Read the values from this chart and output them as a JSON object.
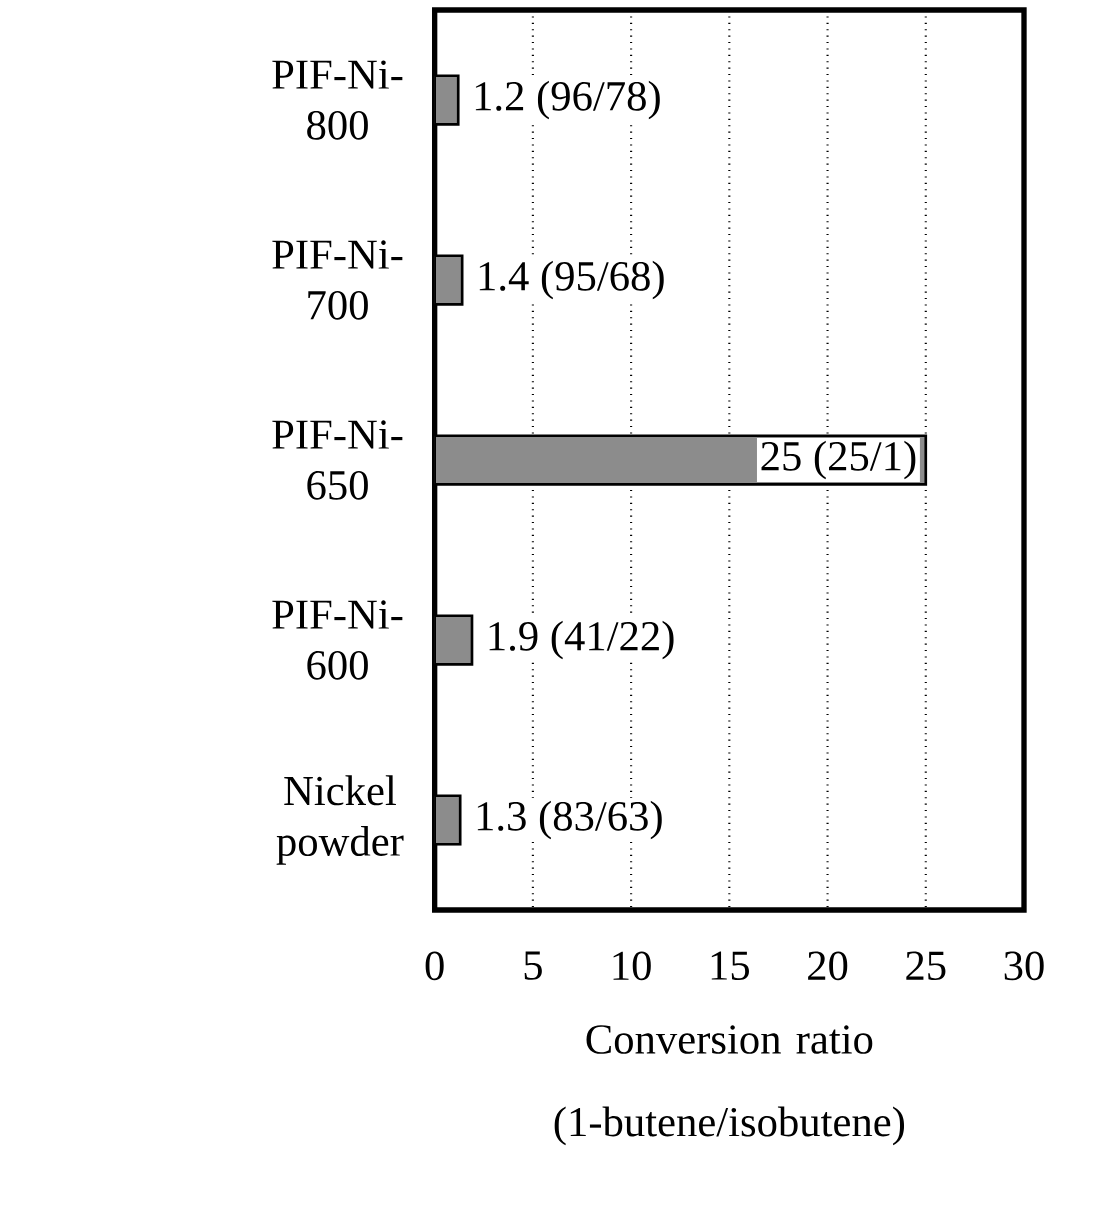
{
  "chart_data": {
    "type": "bar",
    "orientation": "horizontal",
    "categories": [
      "PIF-Ni-800",
      "PIF-Ni-700",
      "PIF-Ni-650",
      "PIF-Ni-600",
      "Nickel powder"
    ],
    "values": [
      1.2,
      1.4,
      25,
      1.9,
      1.3
    ],
    "value_labels": [
      "1.2 (96/78)",
      "1.4 (95/68)",
      "25 (25/1)",
      "1.9 (41/22)",
      "1.3 (83/63)"
    ],
    "color": "#8c8c8c",
    "xlabel": "Conversion ratio (1-butene/isobutene)",
    "xlim": [
      0,
      30
    ],
    "xticks": [
      0,
      5,
      10,
      15,
      20,
      25,
      30
    ],
    "grid": "x"
  }
}
